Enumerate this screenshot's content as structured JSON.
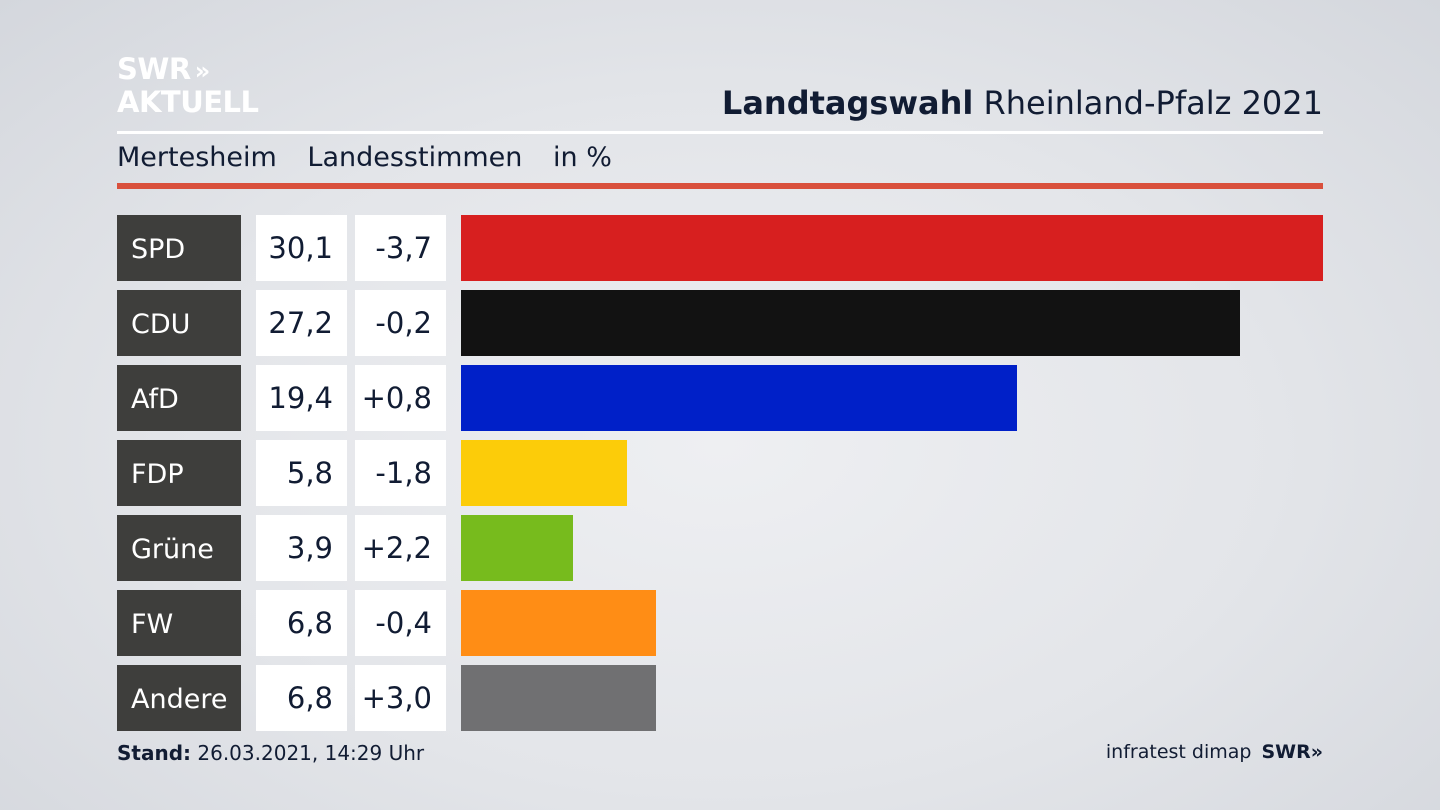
{
  "logo": {
    "line1": "SWR",
    "line1_chevrons": "»",
    "line2": "AKTUELL"
  },
  "header": {
    "title_bold": "Landtagswahl",
    "title_rest": "Rheinland-Pfalz 2021"
  },
  "subheader": {
    "place": "Mertesheim",
    "vote_type": "Landesstimmen",
    "unit": "in %"
  },
  "footer": {
    "stand_label": "Stand:",
    "stand_value": "26.03.2021, 14:29 Uhr",
    "source": "infratest dimap",
    "brand": "SWR»"
  },
  "colors": {
    "label_bg": "#3e3e3c",
    "accent_rule": "#d9503c",
    "value_bg": "#ffffff"
  },
  "chart_data": {
    "type": "bar",
    "orientation": "horizontal",
    "categories": [
      "SPD",
      "CDU",
      "AfD",
      "FDP",
      "Grüne",
      "FW",
      "Andere"
    ],
    "values": [
      30.1,
      27.2,
      19.4,
      5.8,
      3.9,
      6.8,
      6.8
    ],
    "values_text": [
      "30,1",
      "27,2",
      "19,4",
      "5,8",
      "3,9",
      "6,8",
      "6,8"
    ],
    "changes_text": [
      "-3,7",
      "-0,2",
      "+0,8",
      "-1,8",
      "+2,2",
      "-0,4",
      "+3,0"
    ],
    "colors": [
      "#d71f1f",
      "#121212",
      "#0020c8",
      "#fccc09",
      "#77bb1d",
      "#ff8d15",
      "#707072"
    ],
    "xlim": [
      0,
      30.1
    ],
    "grid": false,
    "legend": "none"
  }
}
